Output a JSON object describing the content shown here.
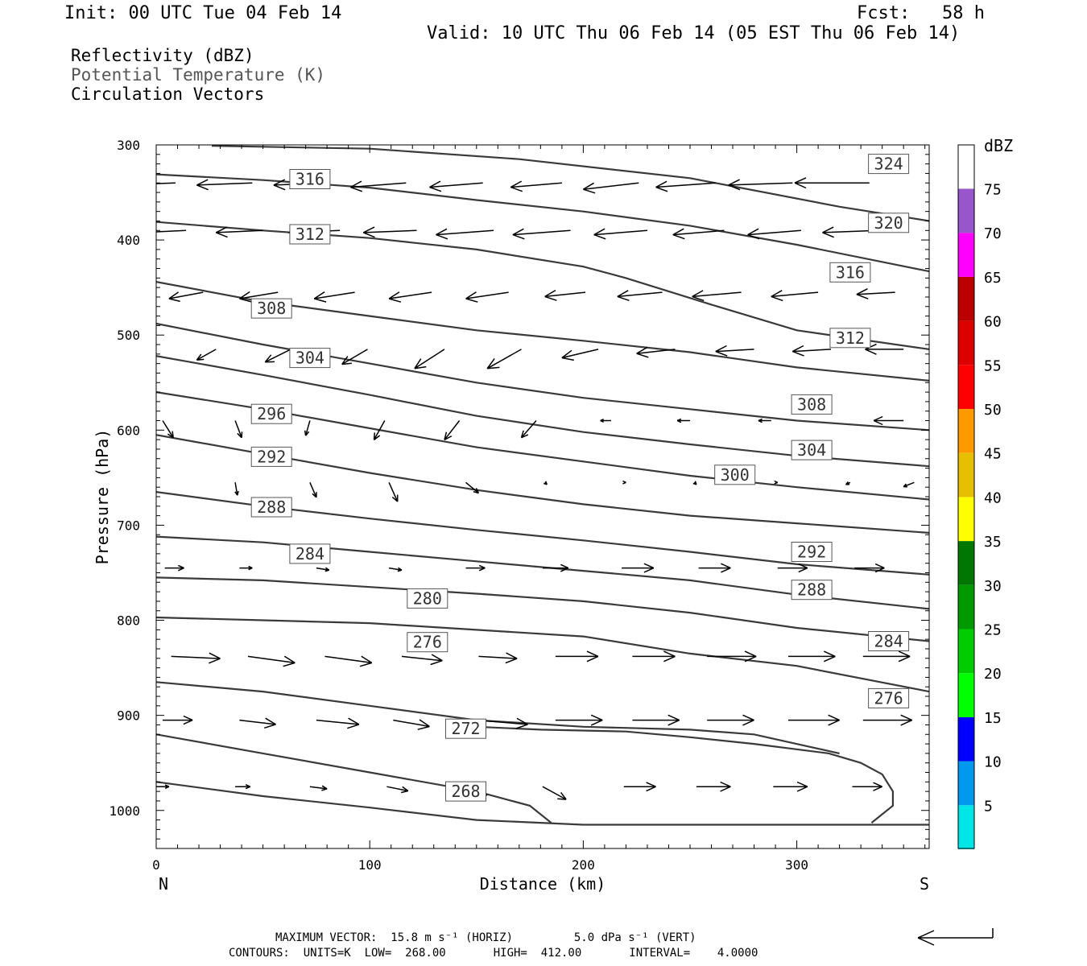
{
  "header": {
    "init": "Init: 00 UTC Tue 04 Feb 14",
    "fcst": "Fcst:   58 h",
    "valid": "Valid: 10 UTC Thu 06 Feb 14 (05 EST Thu 06 Feb 14)"
  },
  "fields": {
    "reflectivity": "Reflectivity (dBZ)",
    "theta": "Potential Temperature (K)",
    "vectors": "Circulation Vectors"
  },
  "footer": {
    "max_vector": "MAXIMUM VECTOR:  15.8 m s⁻¹ (HORIZ)         5.0 dPa s⁻¹ (VERT)",
    "contours": "CONTOURS:  UNITS=K  LOW=  268.00       HIGH=  412.00       INTERVAL=    4.0000"
  },
  "colors": {
    "contour": "#3a3a3a",
    "vector": "#000000"
  },
  "chart_data": {
    "type": "cross-section",
    "xlabel": "Distance (km)",
    "ylabel": "Pressure (hPa)",
    "xlim": [
      0,
      362
    ],
    "ylim": [
      300,
      1040
    ],
    "y_scale": "linear, reversed",
    "x_ticks": [
      "0",
      "100",
      "200",
      "300"
    ],
    "x_tick_values": [
      0,
      100,
      200,
      300
    ],
    "y_ticks": [
      "300",
      "400",
      "500",
      "600",
      "700",
      "800",
      "900",
      "1000"
    ],
    "y_tick_values": [
      300,
      400,
      500,
      600,
      700,
      800,
      900,
      1000
    ],
    "x_end_labels": {
      "left": "N",
      "right": "S"
    },
    "colorbar": {
      "title": "dBZ",
      "labels": [
        "5",
        "10",
        "15",
        "20",
        "25",
        "30",
        "35",
        "40",
        "45",
        "50",
        "55",
        "60",
        "65",
        "70",
        "75"
      ],
      "colors": [
        "#00e6e6",
        "#0099ee",
        "#0000ff",
        "#00ff00",
        "#00cc00",
        "#009900",
        "#007700",
        "#ffff00",
        "#e6bf00",
        "#ff9900",
        "#ff0000",
        "#dd0000",
        "#bb0000",
        "#ff00ff",
        "#9955cc",
        "#ffffff"
      ]
    },
    "contours": [
      {
        "value": 268,
        "label": "268",
        "points": [
          [
            0,
            970
          ],
          [
            50,
            985
          ],
          [
            100,
            997
          ],
          [
            150,
            1010
          ],
          [
            200,
            1015
          ],
          [
            250,
            1015
          ],
          [
            300,
            1015
          ],
          [
            362,
            1015
          ]
        ]
      },
      {
        "value": 272,
        "label": "272",
        "points": [
          [
            0,
            920
          ],
          [
            50,
            940
          ],
          [
            100,
            960
          ],
          [
            150,
            980
          ],
          [
            175,
            995
          ],
          [
            185,
            1013
          ]
        ],
        "closing": [
          [
            335,
            1013
          ],
          [
            345,
            995
          ],
          [
            345,
            980
          ],
          [
            340,
            962
          ],
          [
            330,
            950
          ],
          [
            315,
            940
          ],
          [
            280,
            930
          ],
          [
            250,
            923
          ],
          [
            220,
            917
          ],
          [
            180,
            915
          ],
          [
            150,
            912
          ]
        ]
      },
      {
        "value": 276,
        "label": "276",
        "points": [
          [
            0,
            865
          ],
          [
            50,
            875
          ],
          [
            100,
            890
          ],
          [
            150,
            905
          ],
          [
            200,
            912
          ],
          [
            250,
            915
          ],
          [
            280,
            920
          ],
          [
            320,
            940
          ]
        ]
      },
      {
        "value": 280,
        "label": "280",
        "points": [
          [
            0,
            797
          ],
          [
            50,
            800
          ],
          [
            100,
            803
          ],
          [
            150,
            810
          ],
          [
            200,
            817
          ],
          [
            250,
            835
          ],
          [
            300,
            848
          ],
          [
            362,
            875
          ]
        ]
      },
      {
        "value": 284,
        "label": "284",
        "points": [
          [
            0,
            755
          ],
          [
            50,
            758
          ],
          [
            100,
            765
          ],
          [
            150,
            772
          ],
          [
            200,
            780
          ],
          [
            250,
            792
          ],
          [
            300,
            808
          ],
          [
            362,
            822
          ]
        ]
      },
      {
        "value": 288,
        "label": "288",
        "points": [
          [
            0,
            712
          ],
          [
            50,
            718
          ],
          [
            100,
            728
          ],
          [
            150,
            738
          ],
          [
            200,
            748
          ],
          [
            250,
            758
          ],
          [
            300,
            773
          ],
          [
            362,
            788
          ]
        ]
      },
      {
        "value": 292,
        "label": "292",
        "points": [
          [
            0,
            665
          ],
          [
            50,
            680
          ],
          [
            100,
            693
          ],
          [
            150,
            705
          ],
          [
            200,
            716
          ],
          [
            250,
            728
          ],
          [
            300,
            741
          ],
          [
            362,
            752
          ]
        ]
      },
      {
        "value": 296,
        "label": "296",
        "points": [
          [
            0,
            605
          ],
          [
            50,
            625
          ],
          [
            100,
            645
          ],
          [
            150,
            663
          ],
          [
            200,
            678
          ],
          [
            250,
            690
          ],
          [
            300,
            698
          ],
          [
            362,
            708
          ]
        ]
      },
      {
        "value": 300,
        "label": "300",
        "points": [
          [
            0,
            560
          ],
          [
            50,
            578
          ],
          [
            100,
            598
          ],
          [
            150,
            618
          ],
          [
            200,
            633
          ],
          [
            250,
            648
          ],
          [
            300,
            660
          ],
          [
            362,
            673
          ]
        ]
      },
      {
        "value": 304,
        "label": "304",
        "points": [
          [
            0,
            522
          ],
          [
            50,
            542
          ],
          [
            100,
            563
          ],
          [
            150,
            585
          ],
          [
            200,
            602
          ],
          [
            250,
            615
          ],
          [
            300,
            627
          ],
          [
            362,
            638
          ]
        ]
      },
      {
        "value": 308,
        "label": "308",
        "points": [
          [
            0,
            488
          ],
          [
            50,
            510
          ],
          [
            100,
            530
          ],
          [
            150,
            550
          ],
          [
            200,
            566
          ],
          [
            250,
            578
          ],
          [
            300,
            590
          ],
          [
            362,
            600
          ]
        ]
      },
      {
        "value": 312,
        "label": "312",
        "points": [
          [
            0,
            444
          ],
          [
            50,
            465
          ],
          [
            100,
            480
          ],
          [
            150,
            495
          ],
          [
            200,
            506
          ],
          [
            250,
            518
          ],
          [
            300,
            534
          ],
          [
            362,
            548
          ]
        ]
      },
      {
        "value": 316,
        "label": "316",
        "points": [
          [
            0,
            381
          ],
          [
            50,
            390
          ],
          [
            100,
            398
          ],
          [
            150,
            410
          ],
          [
            200,
            428
          ],
          [
            220,
            440
          ],
          [
            260,
            468
          ],
          [
            300,
            495
          ],
          [
            362,
            515
          ]
        ]
      },
      {
        "value": 320,
        "label": "320",
        "points": [
          [
            0,
            331
          ],
          [
            50,
            337
          ],
          [
            100,
            345
          ],
          [
            150,
            358
          ],
          [
            200,
            370
          ],
          [
            250,
            385
          ],
          [
            300,
            405
          ],
          [
            362,
            433
          ]
        ]
      },
      {
        "value": 324,
        "label": "324",
        "points": [
          [
            26,
            301
          ],
          [
            100,
            304
          ],
          [
            170,
            315
          ],
          [
            250,
            335
          ],
          [
            320,
            365
          ],
          [
            362,
            380
          ]
        ]
      }
    ],
    "contour_labels": [
      {
        "text": "316",
        "x": 72,
        "p": 336
      },
      {
        "text": "312",
        "x": 72,
        "p": 394
      },
      {
        "text": "308",
        "x": 54,
        "p": 472
      },
      {
        "text": "304",
        "x": 72,
        "p": 524
      },
      {
        "text": "296",
        "x": 54,
        "p": 583
      },
      {
        "text": "292",
        "x": 54,
        "p": 628
      },
      {
        "text": "288",
        "x": 54,
        "p": 681
      },
      {
        "text": "284",
        "x": 72,
        "p": 730
      },
      {
        "text": "280",
        "x": 127,
        "p": 777
      },
      {
        "text": "276",
        "x": 127,
        "p": 823
      },
      {
        "text": "272",
        "x": 145,
        "p": 914
      },
      {
        "text": "268",
        "x": 145,
        "p": 980
      },
      {
        "text": "324",
        "x": 343,
        "p": 320
      },
      {
        "text": "320",
        "x": 343,
        "p": 382
      },
      {
        "text": "316",
        "x": 325,
        "p": 434
      },
      {
        "text": "312",
        "x": 325,
        "p": 503
      },
      {
        "text": "308",
        "x": 307,
        "p": 573
      },
      {
        "text": "304",
        "x": 307,
        "p": 621
      },
      {
        "text": "300",
        "x": 271,
        "p": 647
      },
      {
        "text": "292",
        "x": 307,
        "p": 728
      },
      {
        "text": "288",
        "x": 307,
        "p": 768
      },
      {
        "text": "284",
        "x": 343,
        "p": 822
      },
      {
        "text": "276",
        "x": 343,
        "p": 882
      }
    ],
    "vector_rows": [
      {
        "p": 340,
        "y_end": 0,
        "x": [
          9,
          45,
          81,
          117,
          153,
          190,
          226,
          262,
          298,
          334
        ],
        "dx": [
          -27,
          -26,
          -26,
          -26,
          -25,
          -24,
          -26,
          -28,
          -30,
          -35
        ],
        "dy": [
          1,
          1,
          1,
          2,
          2,
          2,
          3,
          2,
          1,
          0
        ]
      },
      {
        "p": 390,
        "y_end": 0,
        "x": [
          14,
          50,
          86,
          122,
          158,
          194,
          230,
          266,
          302,
          338
        ],
        "dx": [
          -22,
          -22,
          -24,
          -25,
          -27,
          -27,
          -25,
          -24,
          -25,
          -26
        ],
        "dy": [
          1,
          1,
          1,
          1,
          2,
          2,
          2,
          2,
          2,
          1
        ]
      },
      {
        "p": 455,
        "y_end": 0,
        "x": [
          22,
          57,
          93,
          129,
          165,
          201,
          237,
          274,
          310,
          346
        ],
        "dx": [
          -16,
          -18,
          -19,
          -20,
          -20,
          -19,
          -21,
          -23,
          -22,
          -18
        ],
        "dy": [
          3,
          3,
          3,
          3,
          3,
          2,
          2,
          2,
          2,
          1
        ]
      },
      {
        "p": 515,
        "y_end": 0,
        "x": [
          28,
          63,
          99,
          135,
          171,
          207,
          243,
          280,
          316,
          350
        ],
        "dx": [
          -9,
          -12,
          -12,
          -14,
          -16,
          -17,
          -18,
          -18,
          -18,
          -18
        ],
        "dy": [
          5,
          6,
          7,
          9,
          9,
          4,
          2,
          1,
          1,
          0
        ]
      },
      {
        "p": 590,
        "y_end": 0,
        "x": [
          3,
          37,
          72,
          107,
          142,
          178,
          213,
          250,
          288,
          350
        ],
        "dx": [
          5,
          3,
          -2,
          -5,
          -7,
          -7,
          -5,
          -6,
          -6,
          -14
        ],
        "dy": [
          8,
          8,
          7,
          9,
          9,
          8,
          0,
          0,
          0,
          0
        ]
      },
      {
        "p": 655,
        "y_end": 0,
        "x": [
          37,
          72,
          109,
          145,
          182,
          219,
          252,
          290,
          325,
          355
        ],
        "dx": [
          1,
          3,
          4,
          6,
          1,
          1,
          1,
          1,
          -2,
          -5
        ],
        "dy": [
          6,
          7,
          9,
          5,
          1,
          0,
          1,
          0,
          1,
          2
        ]
      },
      {
        "p": 745,
        "y_end": 0,
        "x": [
          4,
          39,
          75,
          109,
          145,
          181,
          218,
          254,
          291,
          327,
          362
        ],
        "dx": [
          9,
          6,
          6,
          6,
          9,
          12,
          15,
          15,
          14,
          14,
          14
        ],
        "dy": [
          0,
          0,
          1,
          1,
          0,
          0,
          0,
          0,
          0,
          0,
          0
        ]
      },
      {
        "p": 838,
        "y_end": 0,
        "x": [
          7,
          43,
          79,
          115,
          151,
          187,
          223,
          258,
          296,
          331
        ],
        "dx": [
          23,
          22,
          22,
          19,
          18,
          20,
          20,
          23,
          22,
          22
        ],
        "dy": [
          1,
          3,
          3,
          2,
          1,
          0,
          0,
          0,
          0,
          0
        ]
      },
      {
        "p": 905,
        "y_end": 0,
        "x": [
          3,
          39,
          75,
          111,
          150,
          187,
          223,
          258,
          296,
          331
        ],
        "dx": [
          14,
          17,
          20,
          17,
          24,
          22,
          22,
          22,
          24,
          23
        ],
        "dy": [
          0,
          2,
          2,
          3,
          2,
          0,
          0,
          0,
          0,
          0
        ]
      },
      {
        "p": 975,
        "y_end": 0,
        "x": [
          0,
          37,
          72,
          108,
          145,
          181,
          219,
          253,
          289,
          326
        ],
        "dx": [
          6,
          7,
          8,
          10,
          10,
          11,
          15,
          16,
          16,
          14
        ],
        "dy": [
          0,
          0,
          1,
          2,
          4,
          6,
          0,
          0,
          0,
          0
        ]
      }
    ],
    "legend_vector": {
      "label": "reference vector"
    }
  }
}
